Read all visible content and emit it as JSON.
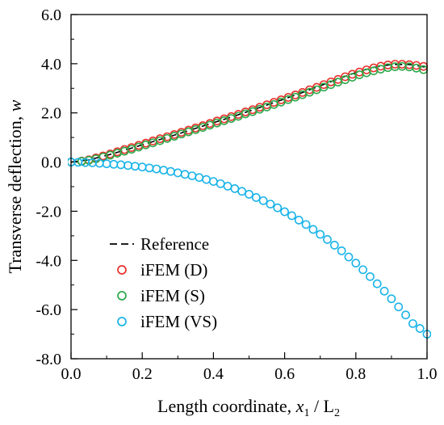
{
  "chart_data": {
    "type": "scatter",
    "xlabel": {
      "prefix": "Length coordinate, ",
      "var": "x",
      "sub": "1",
      "slash": " / L",
      "sub2": "2"
    },
    "ylabel": {
      "prefix": "Transverse deflection, ",
      "var": "w"
    },
    "xlim": [
      0,
      1
    ],
    "ylim": [
      -8,
      6
    ],
    "x_ticks": [
      0,
      0.2,
      0.4,
      0.6,
      0.8,
      1.0
    ],
    "x_tick_labels": [
      "0.0",
      "0.2",
      "0.4",
      "0.6",
      "0.8",
      "1.0"
    ],
    "y_ticks": [
      -8,
      -6,
      -4,
      -2,
      0,
      2,
      4,
      6
    ],
    "y_tick_labels": [
      "-8.0",
      "-6.0",
      "-4.0",
      "-2.0",
      "0.0",
      "2.0",
      "4.0",
      "6.0"
    ],
    "grid": false,
    "legend_position": "bottom-left",
    "colors": {
      "reference": "#000000",
      "iFEM_D": "#e8302a",
      "iFEM_S": "#2da84a",
      "iFEM_VS": "#1ab4e8"
    },
    "series": [
      {
        "name": "Reference",
        "style": "dashed-line",
        "x": [
          0,
          0.05,
          0.1,
          0.15,
          0.2,
          0.25,
          0.3,
          0.35,
          0.4,
          0.45,
          0.5,
          0.55,
          0.6,
          0.65,
          0.7,
          0.75,
          0.8,
          0.85,
          0.9,
          0.95,
          1.0
        ],
        "y": [
          0,
          0.09,
          0.27,
          0.48,
          0.7,
          0.92,
          1.14,
          1.37,
          1.6,
          1.83,
          2.07,
          2.32,
          2.57,
          2.83,
          3.1,
          3.38,
          3.64,
          3.85,
          3.97,
          3.97,
          3.85
        ]
      },
      {
        "name": "iFEM (D)",
        "style": "open-circle",
        "x": [
          0,
          0.03,
          0.05,
          0.07,
          0.09,
          0.11,
          0.13,
          0.15,
          0.17,
          0.19,
          0.21,
          0.23,
          0.25,
          0.27,
          0.29,
          0.31,
          0.33,
          0.35,
          0.37,
          0.39,
          0.41,
          0.43,
          0.45,
          0.47,
          0.49,
          0.51,
          0.53,
          0.55,
          0.57,
          0.59,
          0.61,
          0.63,
          0.65,
          0.67,
          0.69,
          0.71,
          0.73,
          0.75,
          0.77,
          0.79,
          0.81,
          0.83,
          0.85,
          0.87,
          0.89,
          0.91,
          0.93,
          0.95,
          0.97,
          0.99
        ],
        "y": [
          0.0,
          0.04,
          0.09,
          0.17,
          0.25,
          0.33,
          0.42,
          0.51,
          0.59,
          0.68,
          0.77,
          0.86,
          0.95,
          1.03,
          1.12,
          1.21,
          1.3,
          1.39,
          1.48,
          1.57,
          1.67,
          1.76,
          1.85,
          1.94,
          2.04,
          2.13,
          2.23,
          2.33,
          2.43,
          2.53,
          2.63,
          2.73,
          2.83,
          2.94,
          3.04,
          3.15,
          3.26,
          3.36,
          3.47,
          3.57,
          3.66,
          3.75,
          3.83,
          3.9,
          3.95,
          3.98,
          3.98,
          3.96,
          3.93,
          3.89
        ]
      },
      {
        "name": "iFEM (S)",
        "style": "open-circle",
        "x": [
          0,
          0.03,
          0.05,
          0.07,
          0.09,
          0.11,
          0.13,
          0.15,
          0.17,
          0.19,
          0.21,
          0.23,
          0.25,
          0.27,
          0.29,
          0.31,
          0.33,
          0.35,
          0.37,
          0.39,
          0.41,
          0.43,
          0.45,
          0.47,
          0.49,
          0.51,
          0.53,
          0.55,
          0.57,
          0.59,
          0.61,
          0.63,
          0.65,
          0.67,
          0.69,
          0.71,
          0.73,
          0.75,
          0.77,
          0.79,
          0.81,
          0.83,
          0.85,
          0.87,
          0.89,
          0.91,
          0.93,
          0.95,
          0.97,
          0.99
        ],
        "y": [
          0.0,
          0.03,
          0.07,
          0.13,
          0.2,
          0.28,
          0.36,
          0.44,
          0.52,
          0.61,
          0.7,
          0.78,
          0.87,
          0.96,
          1.05,
          1.14,
          1.23,
          1.32,
          1.41,
          1.5,
          1.59,
          1.68,
          1.77,
          1.86,
          1.96,
          2.05,
          2.15,
          2.24,
          2.34,
          2.44,
          2.54,
          2.64,
          2.74,
          2.84,
          2.94,
          3.05,
          3.15,
          3.25,
          3.35,
          3.45,
          3.55,
          3.63,
          3.71,
          3.78,
          3.84,
          3.88,
          3.89,
          3.87,
          3.82,
          3.76
        ]
      },
      {
        "name": "iFEM (VS)",
        "style": "open-circle",
        "x": [
          0,
          0.02,
          0.04,
          0.06,
          0.08,
          0.1,
          0.12,
          0.14,
          0.16,
          0.18,
          0.2,
          0.22,
          0.24,
          0.26,
          0.28,
          0.3,
          0.32,
          0.34,
          0.36,
          0.38,
          0.4,
          0.42,
          0.44,
          0.46,
          0.48,
          0.5,
          0.52,
          0.54,
          0.56,
          0.58,
          0.6,
          0.62,
          0.64,
          0.66,
          0.68,
          0.7,
          0.72,
          0.74,
          0.76,
          0.78,
          0.8,
          0.82,
          0.84,
          0.86,
          0.88,
          0.9,
          0.92,
          0.94,
          0.96,
          0.98,
          1.0
        ],
        "y": [
          0.0,
          -0.01,
          -0.02,
          -0.03,
          -0.05,
          -0.07,
          -0.09,
          -0.11,
          -0.14,
          -0.17,
          -0.2,
          -0.24,
          -0.28,
          -0.33,
          -0.38,
          -0.44,
          -0.5,
          -0.56,
          -0.63,
          -0.71,
          -0.79,
          -0.88,
          -0.98,
          -1.08,
          -1.19,
          -1.31,
          -1.44,
          -1.57,
          -1.71,
          -1.86,
          -2.02,
          -2.18,
          -2.36,
          -2.54,
          -2.74,
          -2.94,
          -3.15,
          -3.38,
          -3.61,
          -3.86,
          -4.11,
          -4.38,
          -4.66,
          -4.95,
          -5.25,
          -5.56,
          -5.89,
          -6.22,
          -6.57,
          -6.77,
          -7.0
        ]
      }
    ]
  }
}
